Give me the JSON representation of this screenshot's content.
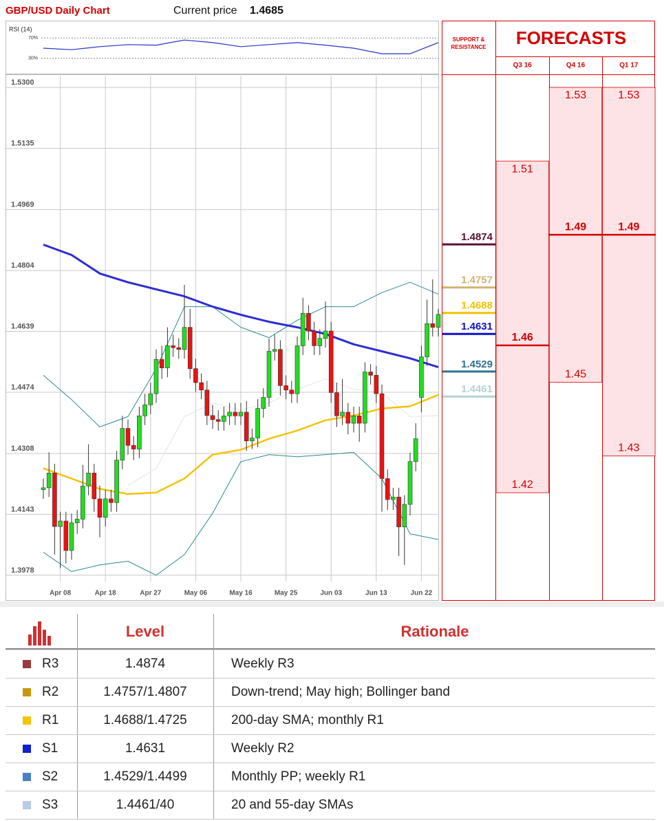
{
  "header": {
    "title": "GBP/USD Daily Chart",
    "current_price_label": "Current price",
    "current_price": 1.4685
  },
  "chart_data": [
    {
      "type": "line",
      "title": "RSI (14)",
      "color": "#2233cc",
      "x": [
        0,
        5,
        10,
        15,
        20,
        25,
        30,
        35,
        40,
        45,
        50,
        55,
        60,
        65,
        70
      ],
      "values": [
        50,
        47,
        53,
        57,
        56,
        66,
        61,
        53,
        57,
        61,
        56,
        50,
        39,
        39,
        61
      ],
      "ylim": [
        0,
        100
      ],
      "yticks": [
        {
          "value": 70,
          "label": "70%"
        },
        {
          "value": 30,
          "label": "30%"
        }
      ]
    },
    {
      "type": "candlestick",
      "up_color": "#22dd22",
      "down_color": "#ee1111",
      "grid": true,
      "ylim": [
        1.3961,
        1.5332
      ],
      "yticks": [
        {
          "value": 1.53,
          "label": "1.5300"
        },
        1.5135,
        1.4969,
        1.4804,
        1.4639,
        1.4474,
        1.4308,
        1.4143,
        1.3978
      ],
      "categories": [
        null,
        null,
        null,
        "Apr 08",
        null,
        null,
        null,
        null,
        null,
        null,
        null,
        "Apr 18",
        null,
        null,
        null,
        null,
        null,
        null,
        null,
        "Apr 27",
        null,
        null,
        null,
        null,
        null,
        null,
        null,
        "May 06",
        null,
        null,
        null,
        null,
        null,
        null,
        null,
        "May 16",
        null,
        null,
        null,
        null,
        null,
        null,
        null,
        "May 25",
        null,
        null,
        null,
        null,
        null,
        null,
        null,
        "Jun 03",
        null,
        null,
        null,
        null,
        null,
        null,
        null,
        "Jun 13",
        null,
        null,
        null,
        null,
        null,
        null,
        null,
        "Jun 22",
        null,
        null,
        null
      ],
      "open": [
        1.421,
        1.4215,
        1.4255,
        1.411,
        1.4125,
        1.4045,
        1.412,
        1.413,
        1.422,
        1.4255,
        1.4185,
        1.4135,
        1.4185,
        1.4175,
        1.429,
        1.4376,
        1.433,
        1.432,
        1.441,
        1.444,
        1.447,
        1.4563,
        1.454,
        1.46,
        1.4595,
        1.459,
        1.465,
        1.4538,
        1.45,
        1.448,
        1.4411,
        1.44,
        1.4395,
        1.441,
        1.442,
        1.441,
        1.442,
        1.4342,
        1.435,
        1.443,
        1.446,
        1.4585,
        1.459,
        1.4492,
        1.448,
        1.447,
        1.46,
        1.4688,
        1.464,
        1.46,
        1.462,
        1.464,
        1.4473,
        1.441,
        1.442,
        1.439,
        1.441,
        1.439,
        1.4529,
        1.452,
        1.447,
        1.424,
        1.4183,
        1.419,
        1.4109,
        1.417,
        1.4286,
        1.446,
        1.457,
        1.466,
        1.465
      ],
      "high": [
        1.424,
        1.4311,
        1.428,
        1.415,
        1.415,
        1.4145,
        1.4155,
        1.4277,
        1.4333,
        1.428,
        1.4221,
        1.421,
        1.421,
        1.4315,
        1.441,
        1.44,
        1.4355,
        1.4435,
        1.447,
        1.45,
        1.459,
        1.46,
        1.465,
        1.463,
        1.462,
        1.4765,
        1.47,
        1.4565,
        1.4525,
        1.4505,
        1.444,
        1.4425,
        1.4435,
        1.4445,
        1.4445,
        1.4445,
        1.445,
        1.4375,
        1.4455,
        1.4485,
        1.462,
        1.463,
        1.4615,
        1.452,
        1.4505,
        1.4625,
        1.473,
        1.471,
        1.4665,
        1.4645,
        1.472,
        1.4665,
        1.45,
        1.451,
        1.4445,
        1.4435,
        1.4435,
        1.4555,
        1.455,
        1.4545,
        1.4495,
        1.4265,
        1.4215,
        1.4215,
        1.4195,
        1.431,
        1.439,
        1.46,
        1.4725,
        1.478,
        1.47
      ],
      "low": [
        1.4185,
        1.419,
        1.4034,
        1.3997,
        1.401,
        1.402,
        1.409,
        1.4105,
        1.4195,
        1.415,
        1.4081,
        1.411,
        1.415,
        1.415,
        1.4265,
        1.4305,
        1.429,
        1.4295,
        1.4385,
        1.4415,
        1.4445,
        1.451,
        1.4515,
        1.457,
        1.4565,
        1.4565,
        1.451,
        1.4475,
        1.4455,
        1.4385,
        1.4375,
        1.437,
        1.437,
        1.4385,
        1.4385,
        1.4385,
        1.4315,
        1.432,
        1.4325,
        1.4405,
        1.4435,
        1.456,
        1.4465,
        1.4455,
        1.4445,
        1.4445,
        1.4575,
        1.4615,
        1.4575,
        1.4575,
        1.4595,
        1.4445,
        1.438,
        1.4385,
        1.436,
        1.4365,
        1.434,
        1.4365,
        1.4495,
        1.4445,
        1.415,
        1.4155,
        1.4155,
        1.403,
        1.4006,
        1.414,
        1.426,
        1.442,
        1.4545,
        1.4625,
        1.4625
      ],
      "close": [
        1.4215,
        1.4255,
        1.411,
        1.4125,
        1.4045,
        1.412,
        1.413,
        1.422,
        1.4255,
        1.4185,
        1.4135,
        1.4185,
        1.4175,
        1.429,
        1.4376,
        1.433,
        1.432,
        1.441,
        1.444,
        1.447,
        1.4563,
        1.454,
        1.46,
        1.4595,
        1.459,
        1.465,
        1.4538,
        1.45,
        1.448,
        1.4411,
        1.44,
        1.4395,
        1.441,
        1.442,
        1.441,
        1.442,
        1.4342,
        1.435,
        1.443,
        1.446,
        1.4585,
        1.459,
        1.4492,
        1.448,
        1.447,
        1.46,
        1.4688,
        1.464,
        1.46,
        1.462,
        1.464,
        1.4473,
        1.441,
        1.442,
        1.439,
        1.441,
        1.439,
        1.4529,
        1.452,
        1.447,
        1.424,
        1.4183,
        1.419,
        1.4109,
        1.417,
        1.4286,
        1.4348,
        1.457,
        1.466,
        1.465,
        1.4685
      ],
      "lines": [
        {
          "color": "#e4e4e4",
          "width": 1,
          "x": [
            15,
            20,
            25,
            30,
            35,
            40,
            45,
            50,
            55,
            60,
            65,
            70
          ],
          "values": [
            1.4221,
            1.4268,
            1.4408,
            1.4445,
            1.4426,
            1.4445,
            1.4482,
            1.451,
            1.4482,
            1.4473,
            1.4408,
            1.4411
          ]
        },
        {
          "color": "#2a8a8a",
          "width": 1,
          "x": [
            0,
            5,
            10,
            15,
            20,
            25,
            30,
            35,
            40,
            45,
            50,
            55,
            60,
            65,
            70
          ],
          "values": [
            1.452,
            1.4454,
            1.438,
            1.4408,
            1.4538,
            1.4706,
            1.4706,
            1.465,
            1.4622,
            1.4669,
            1.4706,
            1.4706,
            1.4744,
            1.4772,
            1.474
          ]
        },
        {
          "color": "#2a8a8a",
          "width": 1,
          "x": [
            0,
            5,
            10,
            15,
            20,
            25,
            30,
            35,
            40,
            45,
            50,
            55,
            60,
            65,
            70
          ],
          "values": [
            1.404,
            1.3988,
            1.4006,
            1.4016,
            1.3978,
            1.4034,
            1.4146,
            1.4286,
            1.4305,
            1.4299,
            1.4305,
            1.4311,
            1.424,
            1.409,
            1.4075
          ]
        },
        {
          "color": "#f5c20a",
          "width": 2.5,
          "x": [
            0,
            5,
            10,
            15,
            20,
            25,
            30,
            35,
            40,
            45,
            50,
            55,
            60,
            65,
            70
          ],
          "values": [
            1.4268,
            1.424,
            1.4212,
            1.4198,
            1.4202,
            1.424,
            1.4305,
            1.4318,
            1.4348,
            1.437,
            1.4398,
            1.4411,
            1.443,
            1.4436,
            1.4467
          ]
        },
        {
          "color": "#2b2bd6",
          "width": 3,
          "x": [
            0,
            5,
            10,
            15,
            20,
            25,
            30,
            35,
            40,
            45,
            50,
            55,
            60,
            65,
            70
          ],
          "values": [
            1.4874,
            1.4846,
            1.4796,
            1.4772,
            1.4753,
            1.4734,
            1.4706,
            1.4684,
            1.4665,
            1.465,
            1.4632,
            1.4604,
            1.4585,
            1.4566,
            1.4542
          ]
        }
      ]
    },
    {
      "type": "forecast",
      "title": "FORECASTS",
      "levels_title": "SUPPORT & RESISTANCE",
      "color": "#d40000",
      "band_color": "#fde3e5",
      "columns": [
        {
          "label": "Q3 16",
          "high": 1.51,
          "mid": 1.46,
          "low": 1.42
        },
        {
          "label": "Q4 16",
          "high": 1.53,
          "mid": 1.49,
          "low": 1.45
        },
        {
          "label": "Q1 17",
          "high": 1.53,
          "mid": 1.49,
          "low": 1.43
        }
      ],
      "levels": [
        {
          "value": 1.4874,
          "color": "#5a1030"
        },
        {
          "value": 1.4757,
          "color": "#d4b070"
        },
        {
          "value": 1.4688,
          "color": "#f2c200"
        },
        {
          "value": 1.4631,
          "color": "#1010c8"
        },
        {
          "value": 1.4529,
          "color": "#2f7090"
        },
        {
          "value": 1.4461,
          "color": "#b4d2d2"
        }
      ]
    }
  ],
  "table": {
    "columns": [
      "Level",
      "Rationale"
    ],
    "rows": [
      {
        "label": "R3",
        "color": "#9b3a3a",
        "level": "1.4874",
        "rationale": "Weekly R3"
      },
      {
        "label": "R2",
        "color": "#c8960a",
        "level": "1.4757/1.4807",
        "rationale": "Down-trend; May high; Bollinger band"
      },
      {
        "label": "R1",
        "color": "#f5c400",
        "level": "1.4688/1.4725",
        "rationale": "200-day SMA; monthly R1"
      },
      {
        "label": "S1",
        "color": "#1020d0",
        "level": "1.4631",
        "rationale": "Weekly R2"
      },
      {
        "label": "S2",
        "color": "#4a80c0",
        "level": "1.4529/1.4499",
        "rationale": "Monthly PP; weekly R1"
      },
      {
        "label": "S3",
        "color": "#b8cce8",
        "level": "1.4461/40",
        "rationale": "20 and 55-day SMAs"
      }
    ]
  }
}
